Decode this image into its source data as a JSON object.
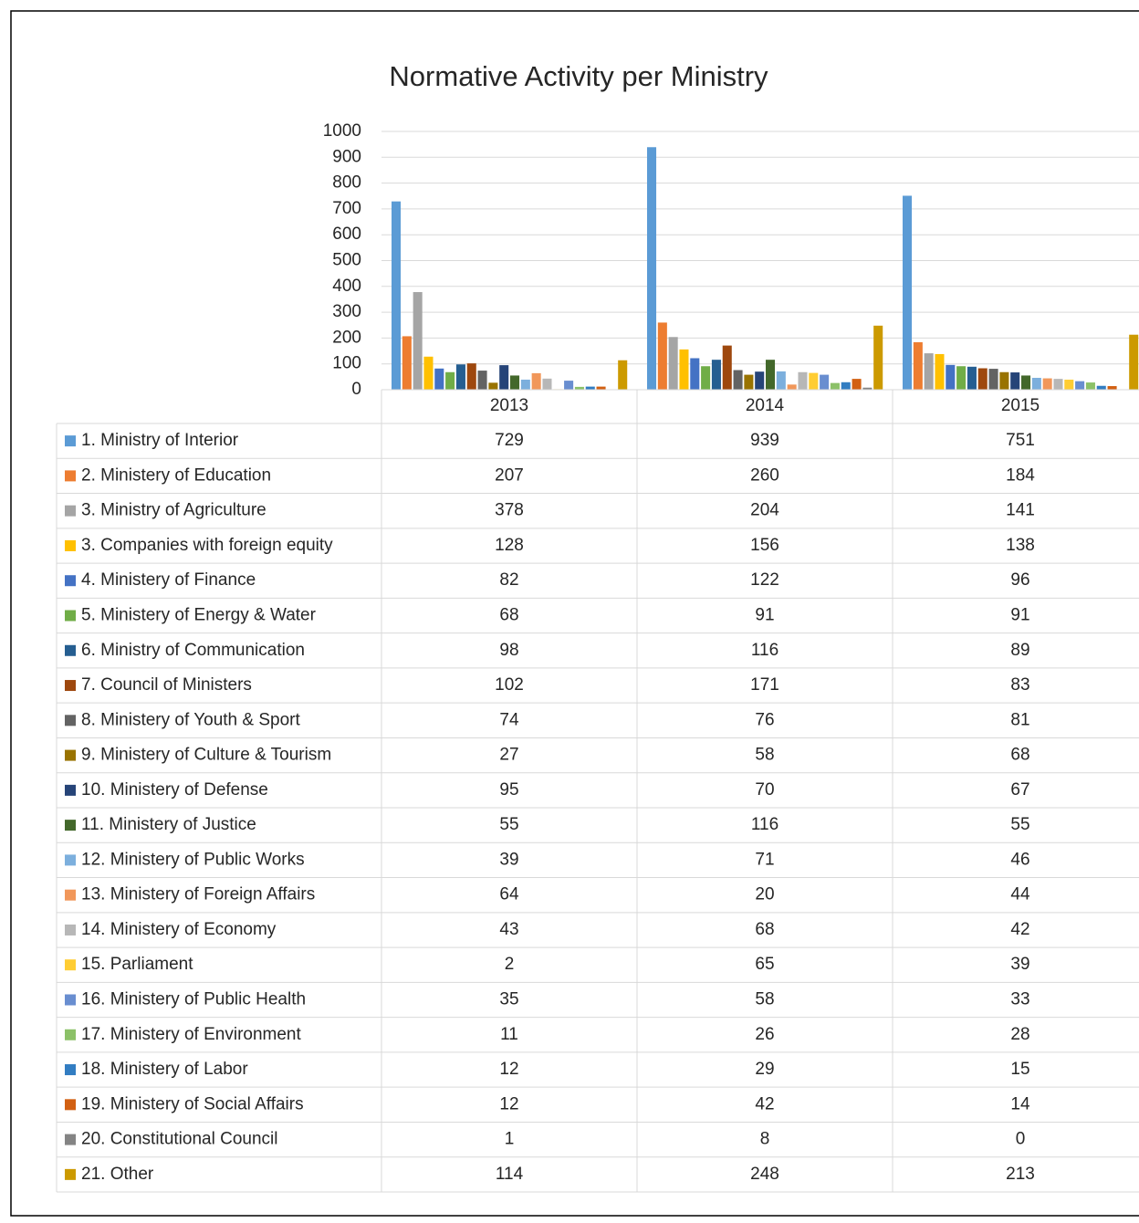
{
  "chart_data": {
    "type": "bar",
    "title": "Normative Activity per Ministry",
    "categories": [
      "2013",
      "2014",
      "2015"
    ],
    "ylim": [
      0,
      1000
    ],
    "yticks": [
      0,
      100,
      200,
      300,
      400,
      500,
      600,
      700,
      800,
      900,
      1000
    ],
    "grid": true,
    "series": [
      {
        "name": "1. Ministry of Interior",
        "color": "#5b9bd5",
        "values": [
          729,
          939,
          751
        ]
      },
      {
        "name": "2. Ministery of Education",
        "color": "#ed7d31",
        "values": [
          207,
          260,
          184
        ]
      },
      {
        "name": "3. Ministry of Agriculture",
        "color": "#a5a5a5",
        "values": [
          378,
          204,
          141
        ]
      },
      {
        "name": "3. Companies with foreign equity",
        "color": "#ffc000",
        "values": [
          128,
          156,
          138
        ]
      },
      {
        "name": "4. Ministery of Finance",
        "color": "#4472c4",
        "values": [
          82,
          122,
          96
        ]
      },
      {
        "name": "5. Ministery of Energy & Water",
        "color": "#70ad47",
        "values": [
          68,
          91,
          91
        ]
      },
      {
        "name": "6. Ministry of Communication",
        "color": "#255e91",
        "values": [
          98,
          116,
          89
        ]
      },
      {
        "name": "7. Council of Ministers",
        "color": "#9e480e",
        "values": [
          102,
          171,
          83
        ]
      },
      {
        "name": "8. Ministery of Youth & Sport",
        "color": "#636363",
        "values": [
          74,
          76,
          81
        ]
      },
      {
        "name": "9. Ministery of Culture & Tourism",
        "color": "#997300",
        "values": [
          27,
          58,
          68
        ]
      },
      {
        "name": "10. Ministery of Defense",
        "color": "#264478",
        "values": [
          95,
          70,
          67
        ]
      },
      {
        "name": "11. Ministery of Justice",
        "color": "#43682b",
        "values": [
          55,
          116,
          55
        ]
      },
      {
        "name": "12. Ministery of Public Works",
        "color": "#7cafdd",
        "values": [
          39,
          71,
          46
        ]
      },
      {
        "name": "13. Ministery of Foreign Affairs",
        "color": "#f1975a",
        "values": [
          64,
          20,
          44
        ]
      },
      {
        "name": "14. Ministery of Economy",
        "color": "#b7b7b7",
        "values": [
          43,
          68,
          42
        ]
      },
      {
        "name": "15. Parliament",
        "color": "#ffcd33",
        "values": [
          2,
          65,
          39
        ]
      },
      {
        "name": "16. Ministery of Public Health",
        "color": "#698ed0",
        "values": [
          35,
          58,
          33
        ]
      },
      {
        "name": "17. Ministery of Environment",
        "color": "#8cc168",
        "values": [
          11,
          26,
          28
        ]
      },
      {
        "name": "18. Ministery of Labor",
        "color": "#327dc2",
        "values": [
          12,
          29,
          15
        ]
      },
      {
        "name": "19. Ministery of Social Affairs",
        "color": "#d26012",
        "values": [
          12,
          42,
          14
        ]
      },
      {
        "name": "20. Constitutional Council",
        "color": "#848484",
        "values": [
          1,
          8,
          0
        ]
      },
      {
        "name": "21. Other",
        "color": "#cc9a00",
        "values": [
          114,
          248,
          213
        ]
      }
    ]
  }
}
